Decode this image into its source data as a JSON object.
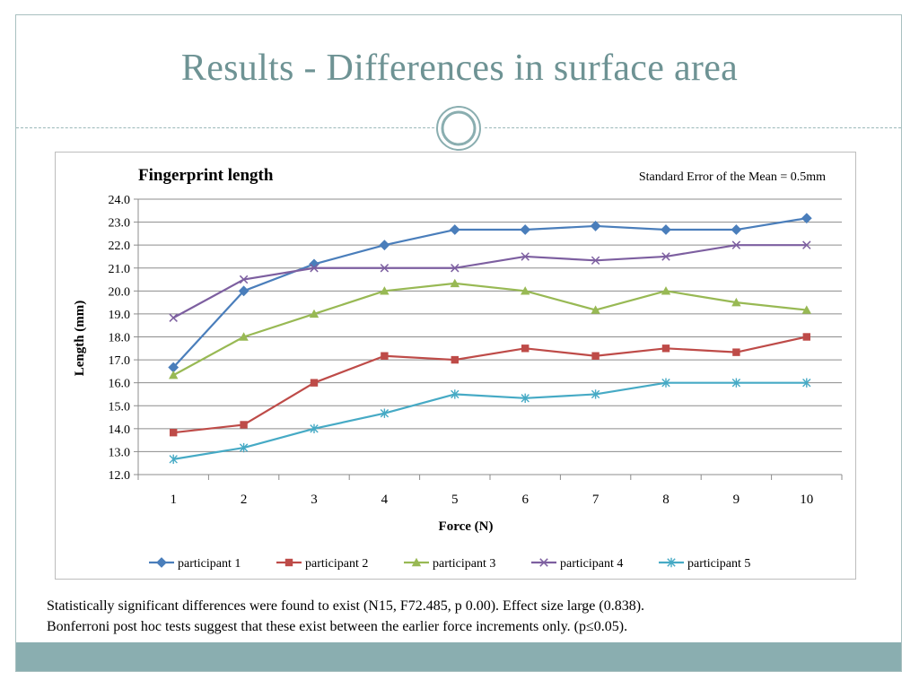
{
  "slide": {
    "title": "Results - Differences in surface area",
    "caption_line1": "Statistically significant differences were found to exist (N15, F72.485, p 0.00).  Effect size large (0.838).",
    "caption_line2": "Bonferroni post hoc tests suggest that these exist between the earlier force increments only. (p≤0.05)."
  },
  "colors": {
    "title": "#6e9394",
    "footer": "#8aaeb0",
    "frame": "#a9c0c0"
  },
  "chart_data": {
    "type": "line",
    "title": "Fingerprint length",
    "annotation": "Standard Error of the Mean = 0.5mm",
    "xlabel": "Force (N)",
    "ylabel": "Length (mm)",
    "x": [
      "1",
      "2",
      "3",
      "4",
      "5",
      "6",
      "7",
      "8",
      "9",
      "10"
    ],
    "ylim": [
      12.0,
      24.0
    ],
    "yticks": [
      "12.0",
      "13.0",
      "14.0",
      "15.0",
      "16.0",
      "17.0",
      "18.0",
      "19.0",
      "20.0",
      "21.0",
      "22.0",
      "23.0",
      "24.0"
    ],
    "grid": "horizontal",
    "legend_position": "bottom",
    "series": [
      {
        "name": "participant 1",
        "color": "#4a7ebb",
        "marker": "diamond",
        "values": [
          16.67,
          20.0,
          21.17,
          22.0,
          22.67,
          22.67,
          22.83,
          22.67,
          22.67,
          23.17
        ]
      },
      {
        "name": "participant 2",
        "color": "#be4b48",
        "marker": "square",
        "values": [
          13.83,
          14.17,
          16.0,
          17.17,
          17.0,
          17.5,
          17.17,
          17.5,
          17.33,
          18.0
        ]
      },
      {
        "name": "participant 3",
        "color": "#98b954",
        "marker": "triangle",
        "values": [
          16.33,
          18.0,
          19.0,
          20.0,
          20.33,
          20.0,
          19.17,
          20.0,
          19.5,
          19.17
        ]
      },
      {
        "name": "participant 4",
        "color": "#7d5fa0",
        "marker": "x",
        "values": [
          18.83,
          20.5,
          21.0,
          21.0,
          21.0,
          21.5,
          21.33,
          21.5,
          22.0,
          22.0
        ]
      },
      {
        "name": "participant 5",
        "color": "#46aac5",
        "marker": "star",
        "values": [
          12.67,
          13.17,
          14.0,
          14.67,
          15.5,
          15.33,
          15.5,
          16.0,
          16.0,
          16.0
        ]
      }
    ]
  }
}
